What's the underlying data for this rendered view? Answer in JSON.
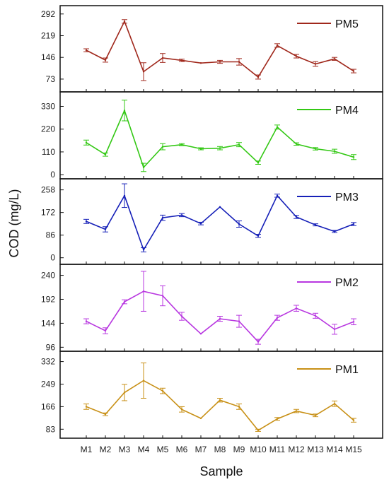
{
  "chart_data": {
    "type": "line",
    "xlabel": "Sample",
    "ylabel": "COD (mg/L)",
    "categories": [
      "M1",
      "M2",
      "M3",
      "M4",
      "M5",
      "M6",
      "M7",
      "M8",
      "M9",
      "M10",
      "M11",
      "M12",
      "M13",
      "M14",
      "M15"
    ],
    "legend_position": "top-right",
    "panels": [
      {
        "name": "PM5",
        "color": "#a0281c",
        "ylim": [
          30,
          320
        ],
        "yticks": [
          "292",
          "219",
          "146",
          "73"
        ],
        "ytick_values": [
          292,
          219,
          146,
          73
        ],
        "values": [
          170,
          137,
          267,
          98,
          144,
          136,
          127,
          131,
          131,
          80,
          186,
          150,
          124,
          141,
          100
        ],
        "errors": [
          5,
          7,
          6,
          30,
          15,
          4,
          0,
          5,
          11,
          7,
          6,
          6,
          8,
          5,
          6
        ]
      },
      {
        "name": "PM4",
        "color": "#33c814",
        "ylim": [
          -20,
          400
        ],
        "yticks": [
          "330",
          "220",
          "110",
          "0"
        ],
        "ytick_values": [
          330,
          220,
          110,
          0
        ],
        "values": [
          155,
          97,
          310,
          35,
          135,
          145,
          125,
          128,
          145,
          58,
          230,
          148,
          125,
          113,
          85
        ],
        "errors": [
          12,
          8,
          50,
          20,
          15,
          5,
          5,
          8,
          10,
          8,
          10,
          6,
          6,
          10,
          12
        ]
      },
      {
        "name": "PM3",
        "color": "#1620b8",
        "ylim": [
          -25,
          300
        ],
        "yticks": [
          "258",
          "172",
          "86",
          "0"
        ],
        "ytick_values": [
          258,
          172,
          86,
          0
        ],
        "values": [
          138,
          108,
          236,
          30,
          152,
          162,
          130,
          193,
          128,
          83,
          236,
          155,
          125,
          100,
          128
        ],
        "errors": [
          8,
          10,
          45,
          8,
          10,
          6,
          5,
          0,
          12,
          6,
          6,
          6,
          4,
          4,
          6
        ]
      },
      {
        "name": "PM2",
        "color": "#b837e0",
        "ylim": [
          88,
          262
        ],
        "yticks": [
          "240",
          "192",
          "144",
          "96"
        ],
        "ytick_values": [
          240,
          192,
          144,
          96
        ],
        "values": [
          148,
          129,
          187,
          208,
          199,
          158,
          123,
          153,
          148,
          107,
          155,
          174,
          159,
          132,
          147
        ],
        "errors": [
          5,
          6,
          4,
          40,
          20,
          8,
          0,
          5,
          12,
          5,
          5,
          6,
          5,
          10,
          6
        ]
      },
      {
        "name": "PM1",
        "color": "#c89016",
        "ylim": [
          50,
          370
        ],
        "yticks": [
          "332",
          "249",
          "166",
          "83"
        ],
        "ytick_values": [
          332,
          249,
          166,
          83
        ],
        "values": [
          166,
          138,
          218,
          262,
          224,
          156,
          123,
          190,
          166,
          79,
          121,
          150,
          134,
          177,
          116
        ],
        "errors": [
          10,
          5,
          30,
          65,
          10,
          10,
          0,
          7,
          10,
          4,
          5,
          6,
          5,
          10,
          7
        ]
      }
    ]
  }
}
